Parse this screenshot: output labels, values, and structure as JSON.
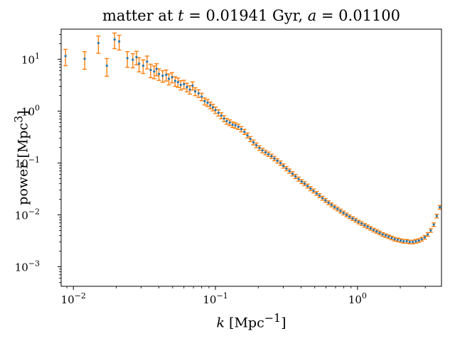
{
  "chart_data": {
    "type": "scatter",
    "title_prefix": "matter at ",
    "title_t_sym": "t",
    "title_t_val": " = 0.01941 Gyr, ",
    "title_a_sym": "a",
    "title_a_val": " = 0.01100",
    "xlabel_sym": "k",
    "xlabel_unit": " [Mpc",
    "xlabel_exp": "−1",
    "xlabel_close": "]",
    "ylabel": "power [Mpc",
    "ylabel_exp": "3",
    "ylabel_close": "]",
    "x_scale": "log",
    "y_scale": "log",
    "xlim": [
      0.0082,
      3.9
    ],
    "ylim": [
      0.00042,
      38
    ],
    "x_ticks": [
      {
        "value": 0.01,
        "base": "10",
        "exp": "−2"
      },
      {
        "value": 0.1,
        "base": "10",
        "exp": "−1"
      },
      {
        "value": 1,
        "base": "10",
        "exp": "0"
      }
    ],
    "y_ticks": [
      {
        "value": 0.001,
        "base": "10",
        "exp": "−3"
      },
      {
        "value": 0.01,
        "base": "10",
        "exp": "−2"
      },
      {
        "value": 0.1,
        "base": "10",
        "exp": "−1"
      },
      {
        "value": 1,
        "base": "10",
        "exp": "0"
      },
      {
        "value": 10,
        "base": "10",
        "exp": "1"
      }
    ],
    "grid": false,
    "legend": "none",
    "colors": {
      "points": "#1f77b4",
      "errorbars": "#ff7f0e"
    },
    "series": [
      {
        "x": [
          0.0088,
          0.012,
          0.015,
          0.0172,
          0.0195,
          0.021,
          0.024,
          0.0262,
          0.0278,
          0.029,
          0.031,
          0.033,
          0.035,
          0.037,
          0.0385,
          0.04,
          0.0425,
          0.045,
          0.047,
          0.0495,
          0.052,
          0.0545,
          0.057,
          0.06,
          0.063,
          0.066,
          0.069,
          0.072,
          0.076,
          0.08,
          0.084,
          0.088,
          0.092,
          0.096,
          0.1,
          0.105,
          0.11,
          0.115,
          0.12,
          0.126,
          0.132,
          0.138,
          0.145,
          0.152,
          0.16,
          0.168,
          0.176,
          0.185,
          0.194,
          0.204,
          0.214,
          0.225,
          0.236,
          0.248,
          0.26,
          0.273,
          0.287,
          0.301,
          0.316,
          0.332,
          0.349,
          0.366,
          0.385,
          0.404,
          0.424,
          0.445,
          0.467,
          0.49,
          0.515,
          0.54,
          0.567,
          0.595,
          0.625,
          0.656,
          0.689,
          0.723,
          0.759,
          0.797,
          0.837,
          0.879,
          0.923,
          0.969,
          1.017,
          1.068,
          1.121,
          1.177,
          1.236,
          1.298,
          1.363,
          1.431,
          1.502,
          1.577,
          1.656,
          1.739,
          1.826,
          1.917,
          2.013,
          2.113,
          2.219,
          2.33,
          2.446,
          2.569,
          2.697,
          2.832,
          2.974,
          3.122,
          3.278,
          3.442,
          3.614,
          3.795
        ],
        "y": [
          11.5,
          10.2,
          20.5,
          7.5,
          24.0,
          22.0,
          10.5,
          9.8,
          11.0,
          8.2,
          7.5,
          9.0,
          6.2,
          5.8,
          6.5,
          5.2,
          4.8,
          5.0,
          4.2,
          4.5,
          3.8,
          3.6,
          3.2,
          3.3,
          2.9,
          2.6,
          3.1,
          2.4,
          2.2,
          1.9,
          1.55,
          1.45,
          1.3,
          1.18,
          1.05,
          0.93,
          0.82,
          0.72,
          0.64,
          0.6,
          0.55,
          0.53,
          0.5,
          0.45,
          0.4,
          0.34,
          0.29,
          0.25,
          0.22,
          0.195,
          0.175,
          0.16,
          0.148,
          0.135,
          0.122,
          0.11,
          0.1,
          0.088,
          0.078,
          0.07,
          0.062,
          0.055,
          0.049,
          0.044,
          0.04,
          0.036,
          0.032,
          0.029,
          0.026,
          0.0235,
          0.021,
          0.019,
          0.0172,
          0.0156,
          0.0142,
          0.013,
          0.0119,
          0.0109,
          0.01,
          0.0092,
          0.0085,
          0.0079,
          0.0073,
          0.0068,
          0.0063,
          0.0059,
          0.0055,
          0.0051,
          0.0048,
          0.0045,
          0.0042,
          0.004,
          0.0038,
          0.0036,
          0.0034,
          0.0033,
          0.0032,
          0.0031,
          0.0031,
          0.003,
          0.003,
          0.0031,
          0.0032,
          0.0034,
          0.0037,
          0.0042,
          0.005,
          0.0065,
          0.0095,
          0.014
        ],
        "err": [
          4.0,
          3.8,
          7.5,
          2.8,
          8.0,
          7.0,
          3.5,
          3.0,
          3.2,
          2.5,
          2.2,
          2.5,
          1.8,
          1.6,
          1.7,
          1.3,
          1.2,
          1.2,
          1.0,
          1.0,
          0.8,
          0.75,
          0.65,
          0.62,
          0.55,
          0.48,
          0.55,
          0.42,
          0.37,
          0.31,
          0.24,
          0.22,
          0.19,
          0.17,
          0.15,
          0.13,
          0.11,
          0.095,
          0.083,
          0.076,
          0.068,
          0.064,
          0.059,
          0.052,
          0.045,
          0.038,
          0.032,
          0.027,
          0.023,
          0.02,
          0.018,
          0.016,
          0.0146,
          0.0132,
          0.0118,
          0.0105,
          0.0095,
          0.0083,
          0.0073,
          0.0065,
          0.0057,
          0.005,
          0.0044,
          0.0039,
          0.0035,
          0.0031,
          0.0028,
          0.0025,
          0.0022,
          0.002,
          0.0018,
          0.0016,
          0.00145,
          0.00131,
          0.00119,
          0.00108,
          0.00099,
          0.0009,
          0.00082,
          0.00075,
          0.00069,
          0.00064,
          0.00059,
          0.00055,
          0.00051,
          0.00047,
          0.00044,
          0.00041,
          0.00038,
          0.00036,
          0.00034,
          0.00032,
          0.0003,
          0.00029,
          0.00027,
          0.00026,
          0.00025,
          0.00025,
          0.00025,
          0.00024,
          0.00024,
          0.00025,
          0.00026,
          0.00027,
          0.0003,
          0.00034,
          0.0004,
          0.00052,
          0.00076,
          0.00112
        ]
      }
    ]
  }
}
